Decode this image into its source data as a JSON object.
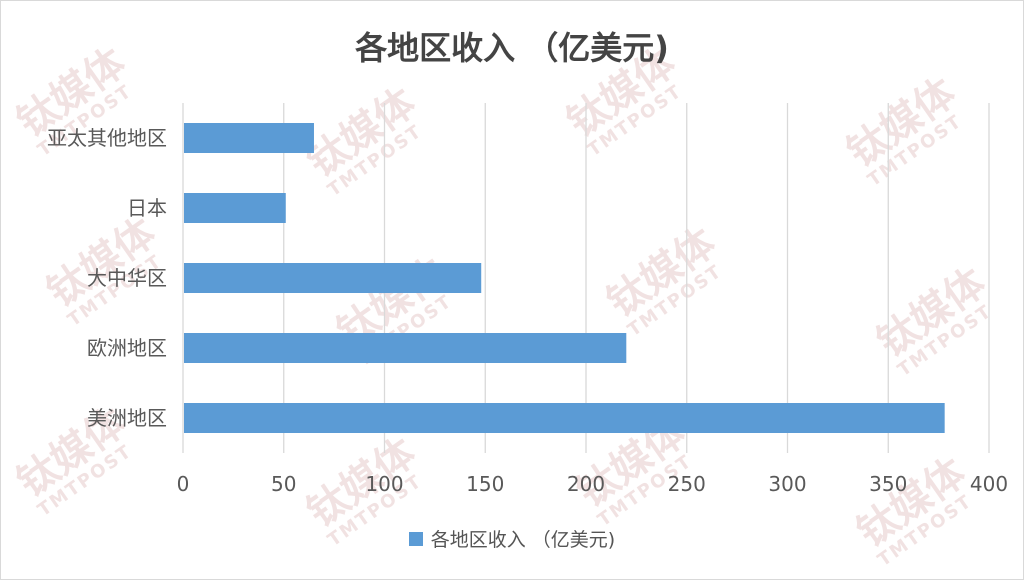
{
  "watermark": {
    "zh": "钛媒体",
    "en": "TMTPOST"
  },
  "chart_data": {
    "type": "bar",
    "orientation": "horizontal",
    "title": "各地区收入 （亿美元)",
    "categories": [
      "亚太其他地区",
      "日本",
      "大中华区",
      "欧洲地区",
      "美洲地区"
    ],
    "series": [
      {
        "name": "各地区收入 （亿美元)",
        "values": [
          65,
          51,
          148,
          220,
          378
        ]
      }
    ],
    "xlim": [
      0,
      400
    ],
    "xticks": [
      "0",
      "50",
      "100",
      "150",
      "200",
      "250",
      "300",
      "350",
      "400"
    ],
    "grid": "vertical",
    "legend": "bottom",
    "colors": {
      "bar": "#5b9bd5",
      "grid": "#d9d9d9",
      "text": "#595959"
    }
  }
}
